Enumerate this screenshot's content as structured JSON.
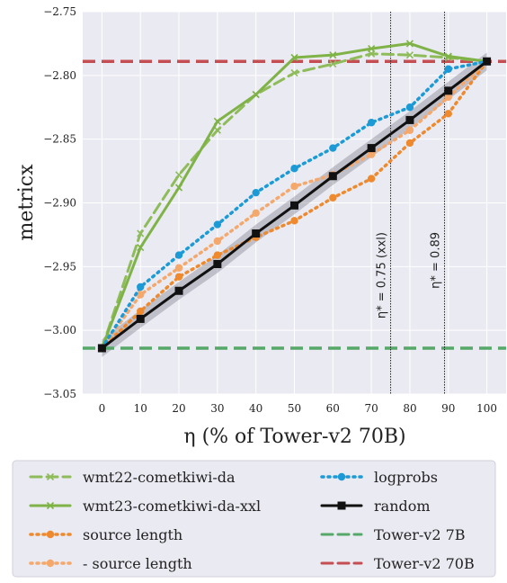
{
  "chart_data": {
    "type": "line",
    "xlabel": "η (% of Tower-v2 70B)",
    "ylabel": "metricx",
    "xlim": [
      -5,
      105
    ],
    "ylim": [
      -3.05,
      -2.75
    ],
    "x": [
      0,
      10,
      20,
      30,
      40,
      50,
      60,
      70,
      80,
      90,
      100
    ],
    "x_tick_labels": [
      "0",
      "10",
      "20",
      "30",
      "40",
      "50",
      "60",
      "70",
      "80",
      "90",
      "100"
    ],
    "y_ticks": [
      -3.05,
      -3.0,
      -2.95,
      -2.9,
      -2.85,
      -2.8,
      -2.75
    ],
    "y_tick_labels": [
      "−3.05",
      "−3.00",
      "−2.95",
      "−2.90",
      "−2.85",
      "−2.80",
      "−2.75"
    ],
    "grid": true,
    "legend_position": "below the plot, two columns",
    "series": [
      {
        "name": "wmt22-cometkiwi-da",
        "color": "#8fbc5a",
        "style": "dashed",
        "marker": "x",
        "values": [
          -3.014,
          -2.924,
          -2.878,
          -2.843,
          -2.815,
          -2.798,
          -2.791,
          -2.783,
          -2.784,
          -2.786,
          -2.789
        ]
      },
      {
        "name": "wmt23-cometkiwi-da-xxl",
        "color": "#7fb347",
        "style": "solid",
        "marker": "x",
        "values": [
          -3.014,
          -2.935,
          -2.888,
          -2.836,
          -2.815,
          -2.786,
          -2.784,
          -2.779,
          -2.775,
          -2.785,
          -2.789
        ]
      },
      {
        "name": "source length",
        "color": "#ee8a2d",
        "style": "dotted",
        "marker": "circle",
        "values": [
          -3.014,
          -2.985,
          -2.958,
          -2.941,
          -2.927,
          -2.914,
          -2.896,
          -2.881,
          -2.853,
          -2.83,
          -2.789
        ]
      },
      {
        "name": "- source length",
        "color": "#f5a86b",
        "style": "dotted",
        "marker": "circle",
        "values": [
          -3.014,
          -2.972,
          -2.951,
          -2.93,
          -2.908,
          -2.887,
          -2.878,
          -2.862,
          -2.843,
          -2.817,
          -2.789
        ]
      },
      {
        "name": "logprobs",
        "color": "#1c9ad6",
        "style": "dotted",
        "marker": "circle",
        "values": [
          -3.014,
          -2.966,
          -2.941,
          -2.917,
          -2.892,
          -2.873,
          -2.857,
          -2.837,
          -2.825,
          -2.795,
          -2.789
        ]
      },
      {
        "name": "random",
        "color": "#111111",
        "style": "solid",
        "marker": "square",
        "values": [
          -3.014,
          -2.991,
          -2.969,
          -2.948,
          -2.924,
          -2.902,
          -2.879,
          -2.857,
          -2.835,
          -2.812,
          -2.789
        ],
        "band_width": 0.007
      }
    ],
    "hlines": [
      {
        "name": "Tower-v2 7B",
        "y": -3.014,
        "color": "#55a868"
      },
      {
        "name": "Tower-v2 70B",
        "y": -2.789,
        "color": "#c44e52"
      }
    ],
    "vlines": [
      {
        "x": 75,
        "label": "η* = 0.75 (xxl)"
      },
      {
        "x": 89,
        "label": "η* = 0.89"
      }
    ]
  }
}
